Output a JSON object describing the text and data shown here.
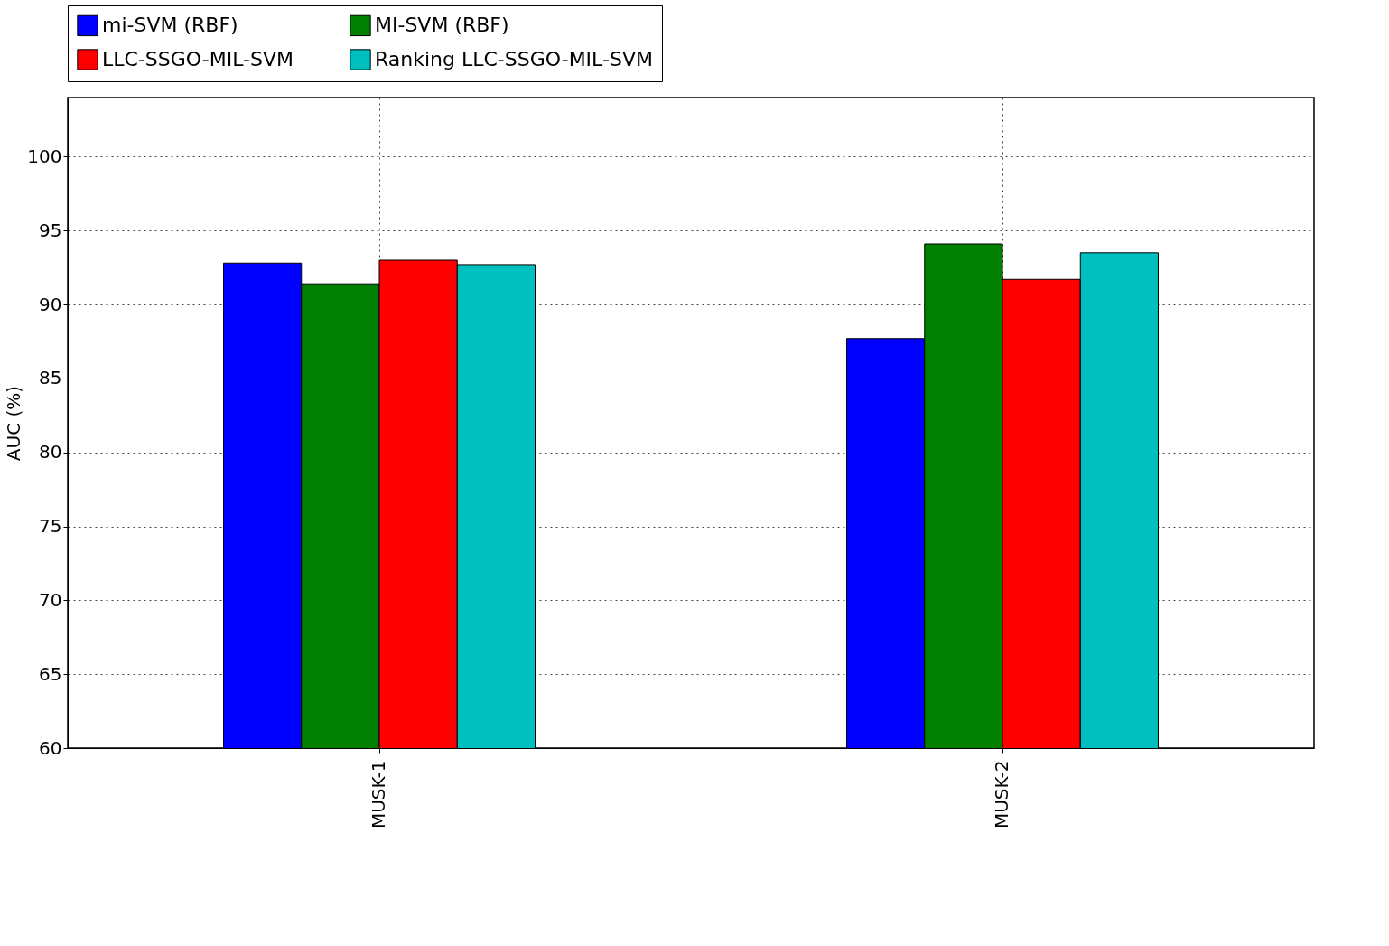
{
  "chart_data": {
    "type": "bar",
    "ylabel": "AUC (%)",
    "categories": [
      "MUSK-1",
      "MUSK-2"
    ],
    "series": [
      {
        "name": "mi-SVM (RBF)",
        "color": "#0000ff",
        "values": [
          92.8,
          87.7
        ]
      },
      {
        "name": "MI-SVM (RBF)",
        "color": "#007f00",
        "values": [
          91.4,
          94.1
        ]
      },
      {
        "name": "LLC-SSGO-MIL-SVM",
        "color": "#ff0000",
        "values": [
          93.0,
          91.7
        ]
      },
      {
        "name": "Ranking LLC-SSGO-MIL-SVM",
        "color": "#00bfbf",
        "values": [
          92.7,
          93.5
        ]
      }
    ],
    "ylim": [
      60,
      104
    ],
    "yticks": [
      60,
      65,
      70,
      75,
      80,
      85,
      90,
      95,
      100
    ],
    "grid": true,
    "legend": "top"
  }
}
